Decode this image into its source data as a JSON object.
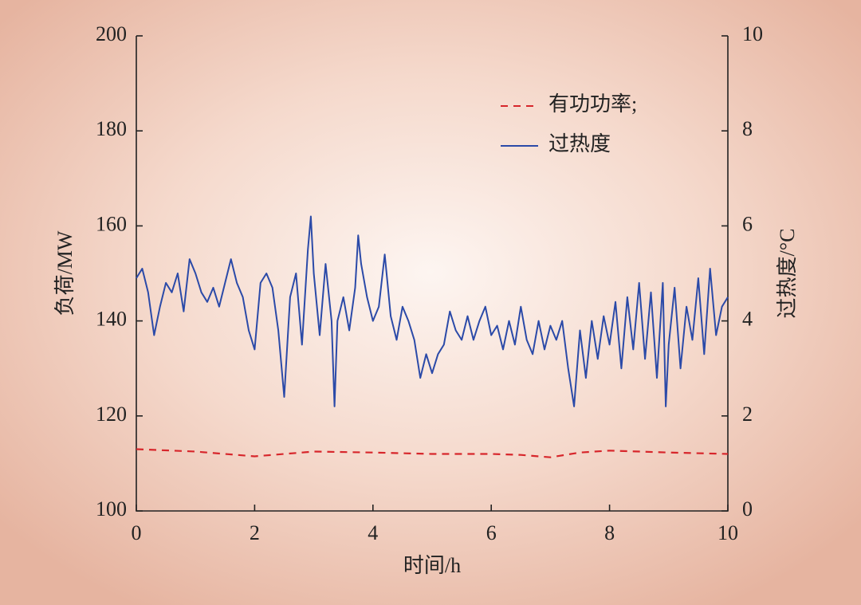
{
  "chart_data": {
    "type": "line",
    "xlabel": "时间/h",
    "ylabel": "负荷/MW",
    "y2label": "过热度/°C",
    "xlim": [
      0,
      10
    ],
    "xticks": [
      0,
      2,
      4,
      6,
      8,
      10
    ],
    "ylim": [
      100,
      200
    ],
    "yticks": [
      100,
      120,
      140,
      160,
      180,
      200
    ],
    "y2lim": [
      0,
      10
    ],
    "y2ticks": [
      0,
      2,
      4,
      6,
      8,
      10
    ],
    "legend": "upper right",
    "series": [
      {
        "name": "有功功率;",
        "color": "#d7262b",
        "dash": true,
        "x": [
          0,
          1,
          2,
          2.5,
          3,
          4,
          5,
          6,
          6.5,
          7,
          7.5,
          8,
          9,
          10
        ],
        "values": [
          113,
          112.5,
          111.5,
          112,
          112.5,
          112.3,
          112,
          112,
          111.8,
          111.3,
          112.3,
          112.7,
          112.3,
          112
        ]
      },
      {
        "name": "过热度",
        "color": "#2b4aa8",
        "axis": "y2",
        "x": [
          0,
          0.1,
          0.2,
          0.3,
          0.4,
          0.5,
          0.6,
          0.7,
          0.8,
          0.9,
          1,
          1.1,
          1.2,
          1.3,
          1.4,
          1.5,
          1.6,
          1.7,
          1.8,
          1.9,
          2,
          2.1,
          2.2,
          2.3,
          2.4,
          2.5,
          2.6,
          2.7,
          2.8,
          2.9,
          2.95,
          3,
          3.1,
          3.2,
          3.3,
          3.35,
          3.4,
          3.5,
          3.6,
          3.7,
          3.75,
          3.8,
          3.9,
          4,
          4.1,
          4.2,
          4.3,
          4.4,
          4.5,
          4.6,
          4.7,
          4.8,
          4.9,
          5,
          5.1,
          5.2,
          5.3,
          5.4,
          5.5,
          5.6,
          5.7,
          5.8,
          5.9,
          6,
          6.1,
          6.2,
          6.3,
          6.4,
          6.5,
          6.6,
          6.7,
          6.8,
          6.9,
          7,
          7.1,
          7.2,
          7.3,
          7.4,
          7.5,
          7.6,
          7.7,
          7.8,
          7.9,
          8,
          8.1,
          8.2,
          8.3,
          8.4,
          8.5,
          8.6,
          8.7,
          8.8,
          8.9,
          8.95,
          9,
          9.1,
          9.2,
          9.3,
          9.4,
          9.5,
          9.6,
          9.7,
          9.8,
          9.9,
          10
        ],
        "values": [
          4.9,
          5.1,
          4.6,
          3.7,
          4.3,
          4.8,
          4.6,
          5.0,
          4.2,
          5.3,
          5.0,
          4.6,
          4.4,
          4.7,
          4.3,
          4.8,
          5.3,
          4.8,
          4.5,
          3.8,
          3.4,
          4.8,
          5.0,
          4.7,
          3.8,
          2.4,
          4.5,
          5.0,
          3.5,
          5.5,
          6.2,
          5.0,
          3.7,
          5.2,
          4.0,
          2.2,
          4.0,
          4.5,
          3.8,
          4.7,
          5.8,
          5.2,
          4.5,
          4.0,
          4.3,
          5.4,
          4.1,
          3.6,
          4.3,
          4.0,
          3.6,
          2.8,
          3.3,
          2.9,
          3.3,
          3.5,
          4.2,
          3.8,
          3.6,
          4.1,
          3.6,
          4.0,
          4.3,
          3.7,
          3.9,
          3.4,
          4.0,
          3.5,
          4.3,
          3.6,
          3.3,
          4.0,
          3.4,
          3.9,
          3.6,
          4.0,
          3.0,
          2.2,
          3.8,
          2.8,
          4.0,
          3.2,
          4.1,
          3.5,
          4.4,
          3.0,
          4.5,
          3.4,
          4.8,
          3.2,
          4.6,
          2.8,
          4.8,
          2.2,
          3.5,
          4.7,
          3.0,
          4.3,
          3.6,
          4.9,
          3.3,
          5.1,
          3.7,
          4.3,
          4.5
        ]
      }
    ]
  }
}
